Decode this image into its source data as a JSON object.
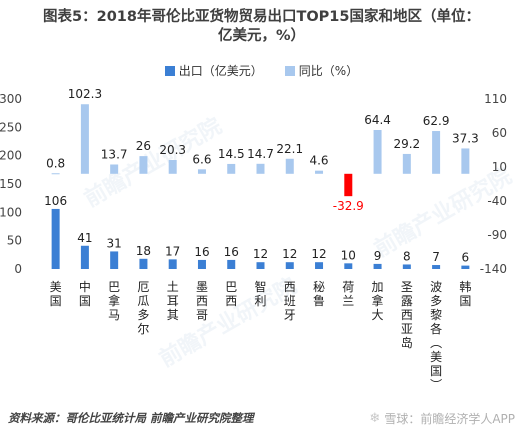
{
  "title_line1": "图表5：2018年哥伦比亚货物贸易出口TOP15国家和地区（单位：",
  "title_line2": "亿美元，%）",
  "legend": {
    "export_label": "出口（亿美元）",
    "yoy_label": "同比（%）"
  },
  "source": "资料来源：哥伦比亚统计局 前瞻产业研究院整理",
  "credit": "雪球：前瞻经济学人APP",
  "credit_icon": "snowflake-icon",
  "colors": {
    "export": "#3b7fd4",
    "yoy": "#a8c8ee",
    "negative": "#ff0000",
    "negative_label": "#ff0000",
    "axis_text": "#444444"
  },
  "chart_data": {
    "type": "bar",
    "categories": [
      "美国",
      "中国",
      "巴拿马",
      "厄瓜多尔",
      "土耳其",
      "墨西哥",
      "巴西",
      "智利",
      "西班牙",
      "秘鲁",
      "荷兰",
      "加拿大",
      "圣露西亚岛",
      "波多黎各（美国）",
      "韩国"
    ],
    "series": [
      {
        "name": "出口（亿美元）",
        "axis": "left",
        "values": [
          106,
          41,
          31,
          18,
          17,
          16,
          16,
          12,
          12,
          12,
          10,
          9,
          8,
          7,
          6
        ]
      },
      {
        "name": "同比（%）",
        "axis": "right",
        "values": [
          0.8,
          102.3,
          13.7,
          26,
          20.3,
          6.6,
          14.5,
          14.7,
          22.1,
          4.6,
          -32.9,
          64.4,
          29.2,
          62.9,
          37.3
        ]
      }
    ],
    "left_axis": {
      "ticks": [
        0,
        50,
        100,
        150,
        200,
        250,
        300
      ],
      "ylim": [
        0,
        300
      ]
    },
    "right_axis": {
      "ticks": [
        -140,
        -90,
        -40,
        10,
        60,
        110
      ],
      "ylim": [
        -140,
        110
      ]
    }
  }
}
